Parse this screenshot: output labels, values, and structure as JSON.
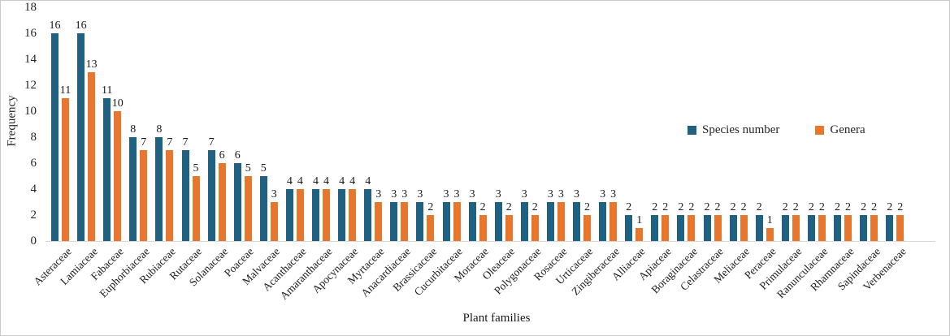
{
  "figure": {
    "background": "#ffffff",
    "border_color": "#c9c9c9"
  },
  "chart_data": {
    "type": "bar",
    "title": "",
    "xlabel": "Plant families",
    "ylabel": "Frequency",
    "ylim": [
      0,
      18
    ],
    "ytick_step": 2,
    "grid": false,
    "legend_position": "inside-right",
    "axis_line_color": "#d9d9d9",
    "categories": [
      "Asteraceae",
      "Lamiaceae",
      "Fabaceae",
      "Euphorbiaceae",
      "Rubiaceae",
      "Rutaceae",
      "Solanaceae",
      "Poaceae",
      "Malvaceae",
      "Acanthaceae",
      "Amaranthaceae",
      "Apocynaceae",
      "Myrtaceae",
      "Anacardiaceae",
      "Brassicaceae",
      "Cucurbitaceae",
      "Moraceae",
      "Oleaceae",
      "Polygonaceae",
      "Rosaceae",
      "Urticaceae",
      "Zingiberaceae",
      "Alliaceae",
      "Apiaceae",
      "Boraginaceae",
      "Celastraceae",
      "Meliaceae",
      "Peraceae",
      "Primulaceae",
      "Ranunculaceae",
      "Rhamnaceae",
      "Sapindaceae",
      "Verbenaceae"
    ],
    "series": [
      {
        "name": "Species number",
        "color": "#206080",
        "values": [
          16,
          16,
          11,
          8,
          8,
          7,
          7,
          6,
          5,
          4,
          4,
          4,
          4,
          3,
          3,
          3,
          3,
          3,
          3,
          3,
          3,
          3,
          2,
          2,
          2,
          2,
          2,
          2,
          2,
          2,
          2,
          2,
          2
        ]
      },
      {
        "name": "Genera",
        "color": "#E8762C",
        "values": [
          11,
          13,
          10,
          7,
          7,
          5,
          6,
          5,
          3,
          4,
          4,
          4,
          3,
          3,
          2,
          3,
          2,
          2,
          2,
          3,
          2,
          3,
          1,
          2,
          2,
          2,
          2,
          1,
          2,
          2,
          2,
          2,
          2
        ]
      }
    ]
  }
}
